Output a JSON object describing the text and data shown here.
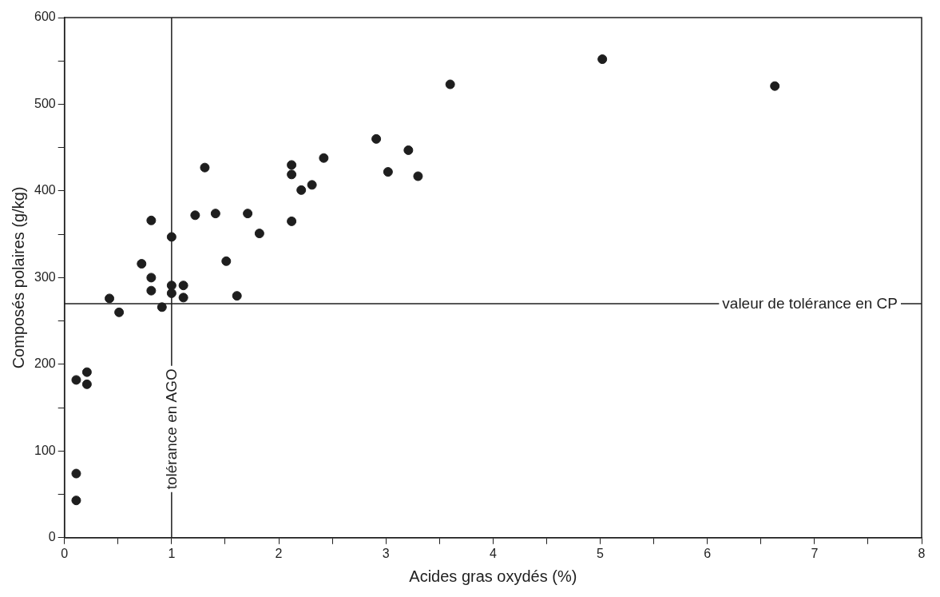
{
  "chart_data": {
    "type": "scatter",
    "xlabel": "Acides gras oxydés (%)",
    "ylabel": "Composés polaires (g/kg)",
    "xlim": [
      0,
      8
    ],
    "ylim": [
      0,
      600
    ],
    "xticks": [
      0,
      {
        "value": 0.5,
        "label": null
      },
      1,
      {
        "value": 1.5,
        "label": null
      },
      2,
      {
        "value": 2.5,
        "label": null
      },
      3,
      {
        "value": 3.5,
        "label": null
      },
      4,
      {
        "value": 4.5,
        "label": null
      },
      5,
      {
        "value": 5.5,
        "label": null
      },
      6,
      {
        "value": 6.5,
        "label": null
      },
      7,
      {
        "value": 7.5,
        "label": null
      },
      8
    ],
    "yticks": [
      0,
      {
        "value": 50,
        "label": null
      },
      100,
      {
        "value": 150,
        "label": null
      },
      200,
      {
        "value": 250,
        "label": null
      },
      300,
      {
        "value": 350,
        "label": null
      },
      400,
      {
        "value": 450,
        "label": null
      },
      500,
      {
        "value": 550,
        "label": null
      },
      600
    ],
    "grid": false,
    "legend": false,
    "marker": "circle",
    "series": [
      {
        "color": "#1e1e1e",
        "x": [
          0.11,
          0.11,
          0.11,
          0.21,
          0.21,
          0.42,
          0.51,
          0.72,
          0.81,
          0.81,
          0.81,
          0.91,
          1.0,
          1.0,
          1.0,
          1.11,
          1.11,
          1.22,
          1.31,
          1.41,
          1.51,
          1.61,
          1.71,
          1.82,
          2.12,
          2.12,
          2.12,
          2.21,
          2.31,
          2.42,
          2.91,
          3.02,
          3.21,
          3.3,
          3.6,
          5.02,
          6.63
        ],
        "values": [
          43,
          74,
          182,
          191,
          177,
          276,
          260,
          316,
          366,
          300,
          285,
          266,
          347,
          291,
          282,
          291,
          277,
          372,
          427,
          374,
          319,
          279,
          374,
          351,
          430,
          419,
          365,
          401,
          407,
          438,
          460,
          422,
          447,
          417,
          523,
          552,
          521
        ]
      }
    ],
    "ref_lines": [
      {
        "axis": "x",
        "value": 1,
        "label": "tolérance en AGO",
        "color": "#1e1e1e"
      },
      {
        "axis": "y",
        "value": 270,
        "label": "valeur de tolérance en CP",
        "color": "#1e1e1e"
      }
    ]
  }
}
